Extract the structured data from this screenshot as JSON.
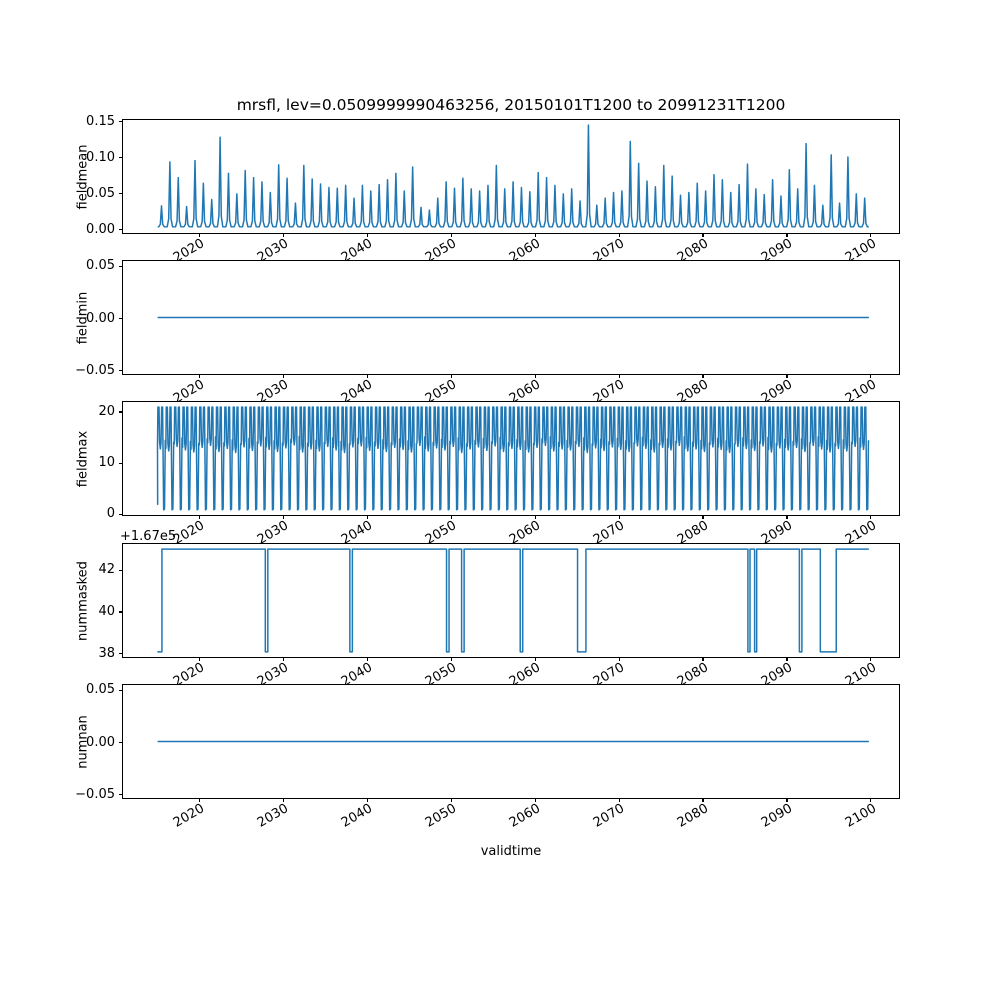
{
  "title": "mrsfl, lev=0.0509999990463256, 20150101T1200 to 20991231T1200",
  "xlabel": "validtime",
  "colors": {
    "line": "#1f77b4",
    "axis": "#000000",
    "background": "#ffffff",
    "text": "#000000"
  },
  "x_axis": {
    "lim": [
      2010.9,
      2103.6
    ],
    "ticks": [
      2020,
      2030,
      2040,
      2050,
      2060,
      2070,
      2080,
      2090,
      2100
    ],
    "tick_labels": [
      "2020",
      "2030",
      "2040",
      "2050",
      "2060",
      "2070",
      "2080",
      "2090",
      "2100"
    ],
    "label_rotation_deg": 30
  },
  "chart_data": [
    {
      "type": "line",
      "name": "fieldmean",
      "ylabel": "fieldmean",
      "render": "spikes",
      "ylim": [
        -0.00725,
        0.15225
      ],
      "yticks": [
        0.0,
        0.05,
        0.1,
        0.15
      ],
      "ytick_labels": [
        "0.00",
        "0.05",
        "0.10",
        "0.15"
      ],
      "x_range": [
        2015.04,
        2100.0
      ],
      "baseline": 0.0015,
      "peak_year_start": 2015,
      "peaks": [
        0.031,
        0.093,
        0.071,
        0.03,
        0.095,
        0.063,
        0.04,
        0.128,
        0.077,
        0.048,
        0.081,
        0.071,
        0.065,
        0.05,
        0.089,
        0.07,
        0.035,
        0.088,
        0.069,
        0.062,
        0.057,
        0.056,
        0.06,
        0.042,
        0.06,
        0.052,
        0.061,
        0.068,
        0.077,
        0.052,
        0.086,
        0.029,
        0.025,
        0.042,
        0.065,
        0.056,
        0.07,
        0.055,
        0.052,
        0.06,
        0.088,
        0.055,
        0.065,
        0.057,
        0.051,
        0.078,
        0.071,
        0.06,
        0.048,
        0.055,
        0.038,
        0.145,
        0.032,
        0.042,
        0.05,
        0.052,
        0.122,
        0.091,
        0.066,
        0.058,
        0.088,
        0.073,
        0.046,
        0.05,
        0.063,
        0.052,
        0.075,
        0.068,
        0.05,
        0.061,
        0.09,
        0.055,
        0.047,
        0.068,
        0.045,
        0.082,
        0.055,
        0.119,
        0.06,
        0.032,
        0.103,
        0.035,
        0.1,
        0.048,
        0.042
      ]
    },
    {
      "type": "line",
      "name": "fieldmin",
      "ylabel": "fieldmin",
      "render": "flat",
      "ylim": [
        -0.055,
        0.055
      ],
      "yticks": [
        -0.05,
        0.0,
        0.05
      ],
      "ytick_labels": [
        "−0.05",
        "0.00",
        "0.05"
      ],
      "x_range": [
        2015.04,
        2100.0
      ],
      "value": 0.0
    },
    {
      "type": "line",
      "name": "fieldmax",
      "ylabel": "fieldmax",
      "render": "cycles",
      "ylim": [
        -0.52,
        21.92
      ],
      "yticks": [
        0,
        10,
        20
      ],
      "ytick_labels": [
        "0",
        "10",
        "20"
      ],
      "x_range": [
        2015.04,
        2100.0
      ],
      "high": 20.9,
      "low": 0.5,
      "cycle_year_start": 2015,
      "mid_levels": [
        13.5,
        13.1,
        14.0,
        13.3,
        12.9,
        13.8,
        14.2,
        13.0,
        13.6,
        12.8,
        13.9,
        13.2,
        14.1,
        13.4,
        13.0,
        13.7,
        14.3,
        12.9,
        13.5,
        13.1,
        14.0,
        13.3,
        12.8,
        13.9,
        14.1,
        13.2,
        13.6,
        13.0,
        13.8,
        13.4,
        12.9,
        14.2,
        13.1,
        13.7,
        13.3,
        14.0,
        12.8,
        13.5,
        13.9,
        13.2,
        14.1,
        13.0,
        13.6,
        13.4,
        12.9,
        13.8,
        14.2,
        13.1,
        13.5,
        13.3,
        14.0,
        12.8,
        13.7,
        13.2,
        13.9,
        13.4,
        13.0,
        14.1,
        13.6,
        12.9,
        13.8,
        13.3,
        14.2,
        13.1,
        13.5,
        13.0,
        13.9,
        13.4,
        12.8,
        14.0,
        13.6,
        13.2,
        14.1,
        12.9,
        13.7,
        13.3,
        13.8,
        13.0,
        14.2,
        13.5,
        12.9,
        13.6,
        13.1,
        14.0,
        13.4
      ]
    },
    {
      "type": "line",
      "name": "nummasked",
      "ylabel": "nummasked",
      "render": "steps",
      "offset_text": "+1.67e5",
      "offset": 167000,
      "ylim": [
        37.75,
        43.25
      ],
      "yticks": [
        38,
        40,
        42
      ],
      "ytick_labels": [
        "38",
        "40",
        "42"
      ],
      "x_range": [
        2015.0,
        2100.0
      ],
      "high": 167043,
      "low": 167038,
      "start_low_until": 2015.55,
      "dips": [
        [
          2027.9,
          2028.2
        ],
        [
          2038.0,
          2038.3
        ],
        [
          2049.55,
          2049.85
        ],
        [
          2051.35,
          2051.65
        ],
        [
          2058.35,
          2058.65
        ],
        [
          2065.2,
          2066.2
        ],
        [
          2085.55,
          2085.8
        ],
        [
          2086.35,
          2086.6
        ],
        [
          2091.7,
          2092.0
        ],
        [
          2094.2,
          2096.1
        ]
      ]
    },
    {
      "type": "line",
      "name": "numnan",
      "ylabel": "numnan",
      "render": "flat",
      "ylim": [
        -0.055,
        0.055
      ],
      "yticks": [
        -0.05,
        0.0,
        0.05
      ],
      "ytick_labels": [
        "−0.05",
        "0.00",
        "0.05"
      ],
      "x_range": [
        2015.04,
        2100.0
      ],
      "value": 0.0
    }
  ]
}
